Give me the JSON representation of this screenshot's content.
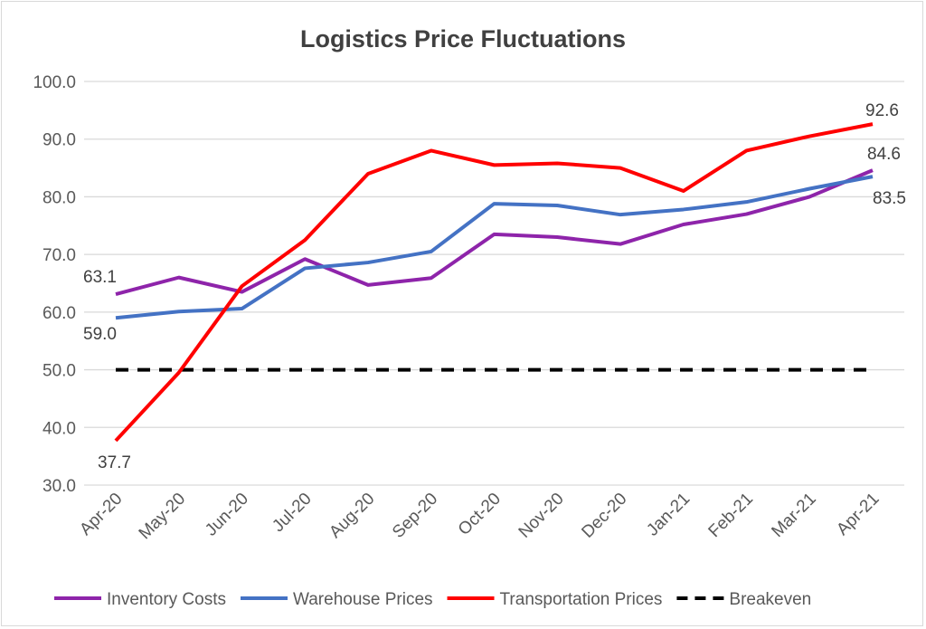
{
  "chart_data": {
    "type": "line",
    "title": "Logistics Price Fluctuations",
    "categories": [
      "Apr-20",
      "May-20",
      "Jun-20",
      "Jul-20",
      "Aug-20",
      "Sep-20",
      "Oct-20",
      "Nov-20",
      "Dec-20",
      "Jan-21",
      "Feb-21",
      "Mar-21",
      "Apr-21"
    ],
    "ylim": [
      30,
      100
    ],
    "yticks": [
      "30.0",
      "40.0",
      "50.0",
      "60.0",
      "70.0",
      "80.0",
      "90.0",
      "100.0"
    ],
    "grid": true,
    "legend_position": "bottom",
    "series": [
      {
        "name": "Inventory Costs",
        "color": "#8e24aa",
        "style": "solid",
        "values": [
          63.1,
          66.0,
          63.5,
          69.2,
          64.7,
          65.9,
          73.5,
          73.0,
          71.8,
          75.2,
          77.0,
          80.0,
          84.6
        ]
      },
      {
        "name": "Warehouse Prices",
        "color": "#4472c4",
        "style": "solid",
        "values": [
          59.0,
          60.1,
          60.6,
          67.6,
          68.6,
          70.5,
          78.8,
          78.5,
          76.9,
          77.8,
          79.1,
          81.4,
          83.5
        ]
      },
      {
        "name": "Transportation Prices",
        "color": "#ff0000",
        "style": "solid",
        "values": [
          37.7,
          49.5,
          64.5,
          72.5,
          84.0,
          88.0,
          85.5,
          85.8,
          85.0,
          81.0,
          88.0,
          90.5,
          92.6
        ]
      },
      {
        "name": "Breakeven",
        "color": "#000000",
        "style": "dashed",
        "values": [
          50,
          50,
          50,
          50,
          50,
          50,
          50,
          50,
          50,
          50,
          50,
          50,
          50
        ]
      }
    ],
    "data_labels": [
      {
        "series": 0,
        "index": 0,
        "text": "63.1"
      },
      {
        "series": 1,
        "index": 0,
        "text": "59.0"
      },
      {
        "series": 2,
        "index": 0,
        "text": "37.7"
      },
      {
        "series": 0,
        "index": 12,
        "text": "84.6"
      },
      {
        "series": 1,
        "index": 12,
        "text": "83.5"
      },
      {
        "series": 2,
        "index": 12,
        "text": "92.6"
      }
    ]
  }
}
